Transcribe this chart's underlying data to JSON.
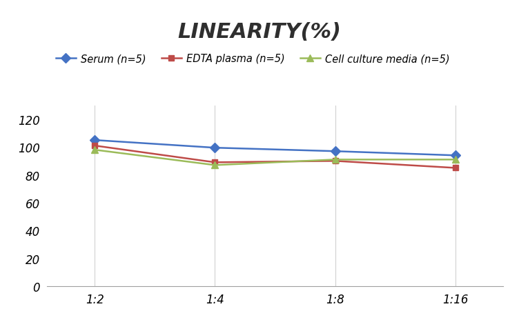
{
  "title": "LINEARITY(%)",
  "x_labels": [
    "1:2",
    "1:4",
    "1:8",
    "1:16"
  ],
  "series": [
    {
      "label": "Serum (n=5)",
      "values": [
        105,
        99.5,
        97,
        94
      ],
      "color": "#4472C4",
      "marker": "D",
      "marker_size": 7,
      "linewidth": 1.8
    },
    {
      "label": "EDTA plasma (n=5)",
      "values": [
        101,
        89,
        90,
        85
      ],
      "color": "#BE4B48",
      "marker": "s",
      "marker_size": 6,
      "linewidth": 1.8
    },
    {
      "label": "Cell culture media (n=5)",
      "values": [
        98,
        87,
        91,
        91
      ],
      "color": "#9BBB59",
      "marker": "^",
      "marker_size": 7,
      "linewidth": 1.8
    }
  ],
  "ylim": [
    0,
    130
  ],
  "yticks": [
    0,
    20,
    40,
    60,
    80,
    100,
    120
  ],
  "background_color": "#FFFFFF",
  "grid_color": "#D0D0D0",
  "title_fontsize": 22,
  "legend_fontsize": 10.5,
  "tick_fontsize": 12
}
